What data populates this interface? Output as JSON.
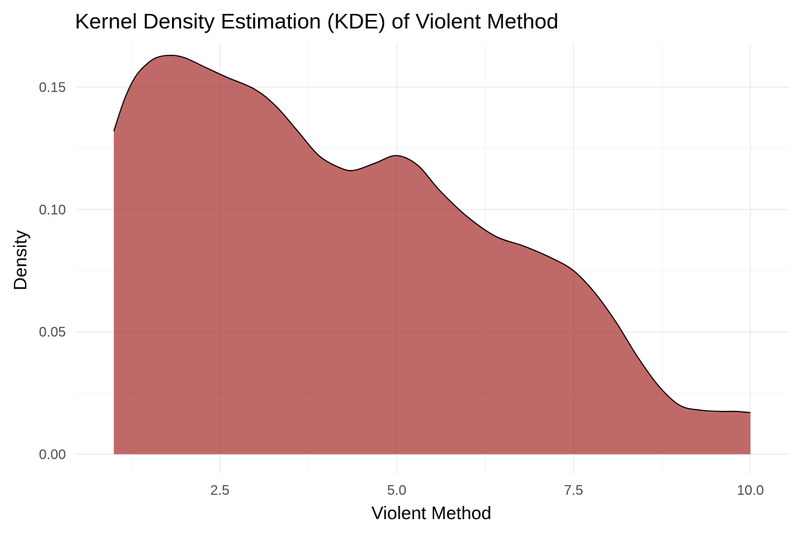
{
  "chart_data": {
    "type": "area",
    "title": "Kernel Density Estimation (KDE) of Violent Method",
    "xlabel": "Violent Method",
    "ylabel": "Density",
    "xlim": [
      0.45,
      10.55
    ],
    "ylim": [
      -0.0078,
      0.168
    ],
    "x_ticks": [
      2.5,
      5.0,
      7.5,
      10.0
    ],
    "x_tick_labels": [
      "2.5",
      "5.0",
      "7.5",
      "10.0"
    ],
    "y_ticks": [
      0.0,
      0.05,
      0.1,
      0.15
    ],
    "y_tick_labels": [
      "0.00",
      "0.05",
      "0.10",
      "0.15"
    ],
    "grid": true,
    "fill_color": "#a52a2a",
    "fill_opacity": 0.7,
    "line_color": "#000000",
    "series": [
      {
        "x": [
          1.0,
          1.15,
          1.3,
          1.45,
          1.6,
          1.8,
          2.0,
          2.3,
          2.6,
          3.0,
          3.3,
          3.6,
          3.9,
          4.2,
          4.4,
          4.7,
          5.0,
          5.3,
          5.6,
          6.0,
          6.4,
          6.8,
          7.2,
          7.5,
          7.8,
          8.1,
          8.4,
          8.7,
          9.0,
          9.3,
          9.6,
          9.8,
          10.0
        ],
        "y": [
          0.132,
          0.145,
          0.154,
          0.159,
          0.162,
          0.163,
          0.162,
          0.158,
          0.154,
          0.149,
          0.142,
          0.132,
          0.122,
          0.117,
          0.116,
          0.119,
          0.122,
          0.118,
          0.108,
          0.097,
          0.089,
          0.085,
          0.08,
          0.075,
          0.066,
          0.054,
          0.04,
          0.028,
          0.02,
          0.018,
          0.0175,
          0.0175,
          0.017
        ]
      }
    ]
  }
}
